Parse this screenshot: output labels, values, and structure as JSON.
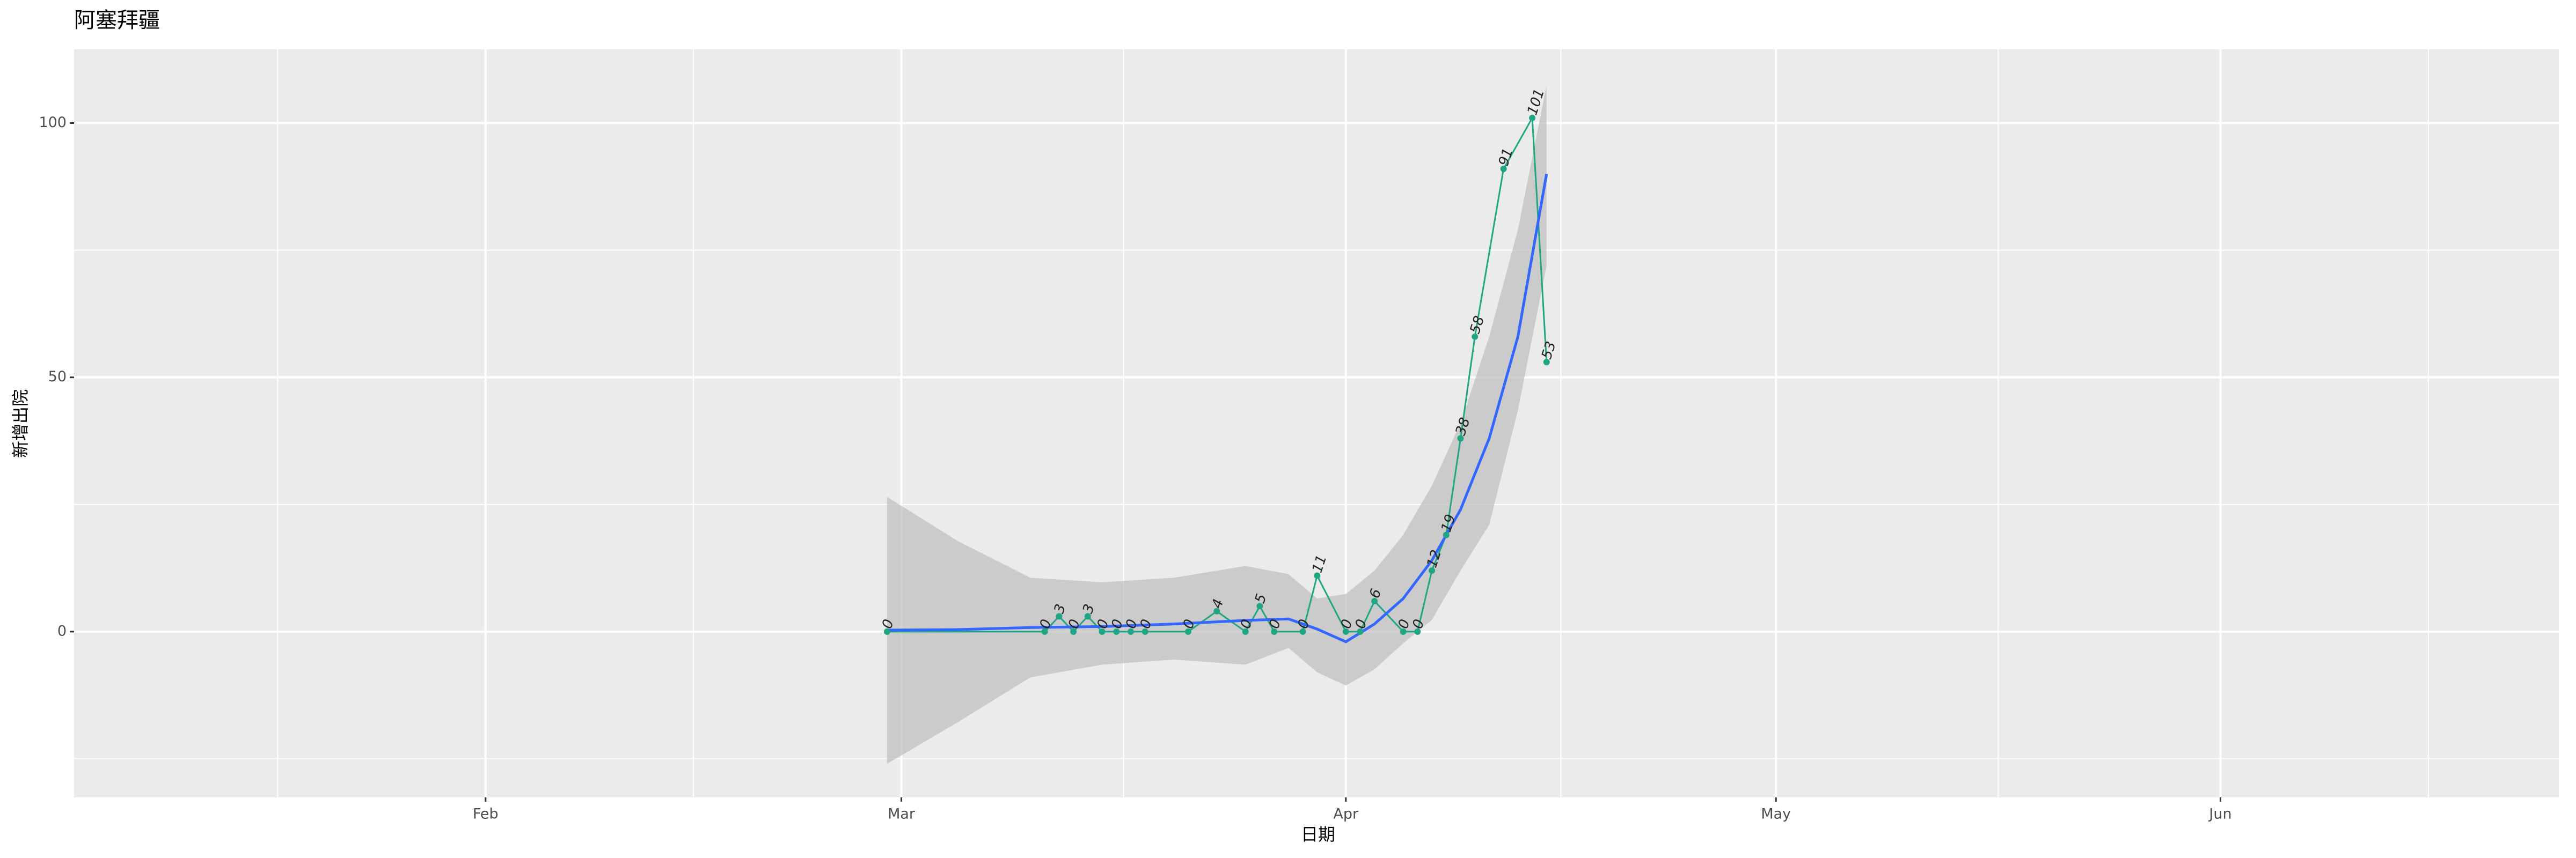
{
  "chart_data": {
    "type": "line",
    "title": "阿塞拜疆",
    "x_label": "日期",
    "y_label": "新增出院",
    "x": [
      60,
      71,
      72,
      73,
      74,
      75,
      76,
      77,
      78,
      81,
      83,
      85,
      86,
      87,
      89,
      90,
      92,
      93,
      94,
      96,
      97,
      98,
      99,
      100,
      101,
      103,
      105,
      106
    ],
    "values": [
      0,
      0,
      3,
      0,
      3,
      0,
      0,
      0,
      0,
      0,
      4,
      0,
      5,
      0,
      0,
      11,
      0,
      0,
      6,
      0,
      0,
      12,
      19,
      38,
      58,
      91,
      101,
      53
    ],
    "color": "#21a685",
    "smooth": {
      "color": "#3366ff",
      "band_color": "#bdbdbd",
      "x": [
        60,
        65,
        70,
        75,
        80,
        85,
        88,
        90,
        92,
        94,
        96,
        98,
        100,
        102,
        104,
        106
      ],
      "values": [
        0.3,
        0.4,
        0.8,
        1.0,
        1.5,
        2.2,
        2.5,
        0.5,
        -2,
        1.5,
        6.5,
        14,
        24,
        38,
        58,
        90
      ],
      "lower": [
        -26,
        -17.7,
        -9,
        -6.5,
        -5.5,
        -6.5,
        -3.2,
        -8,
        -10.6,
        -7.4,
        -2.3,
        2.3,
        12,
        21,
        43.5,
        72
      ],
      "upper": [
        26.5,
        17.7,
        10.6,
        9.7,
        10.6,
        12.9,
        11.3,
        6.5,
        7.4,
        12,
        19,
        28.7,
        41,
        58,
        79,
        107.4
      ]
    },
    "xlim": [
      3.3,
      176.6
    ],
    "xticks": [
      {
        "value": 32,
        "label": "Feb"
      },
      {
        "value": 61,
        "label": "Mar"
      },
      {
        "value": 92,
        "label": "Apr"
      },
      {
        "value": 122,
        "label": "May"
      },
      {
        "value": 153,
        "label": "Jun"
      }
    ],
    "ylim": [
      -32.6,
      114.5
    ],
    "yticks": [
      0,
      50,
      100
    ],
    "grid": true
  }
}
